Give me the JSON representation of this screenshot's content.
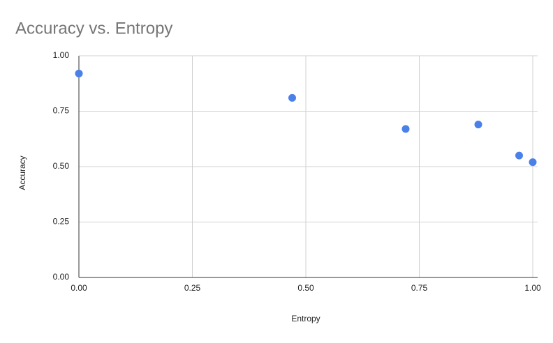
{
  "chart_data": {
    "type": "scatter",
    "title": "Accuracy vs. Entropy",
    "x_label": "Entropy",
    "y_label": "Accuracy",
    "series": [
      {
        "name": "Accuracy",
        "color": "#4a80e8",
        "x": [
          0.0,
          0.47,
          0.72,
          0.88,
          0.97,
          1.0
        ],
        "values": [
          0.92,
          0.81,
          0.67,
          0.69,
          0.55,
          0.52
        ]
      }
    ],
    "xlim": [
      0,
      1
    ],
    "ylim": [
      0,
      1
    ],
    "xticks": [
      {
        "value": 0,
        "label": "0.00"
      },
      {
        "value": 0.25,
        "label": "0.25"
      },
      {
        "value": 0.5,
        "label": "0.50"
      },
      {
        "value": 0.75,
        "label": "0.75"
      },
      {
        "value": 1,
        "label": "1.00"
      }
    ],
    "yticks": [
      {
        "value": 0,
        "label": "0.00"
      },
      {
        "value": 0.25,
        "label": "0.25"
      },
      {
        "value": 0.5,
        "label": "0.50"
      },
      {
        "value": 0.75,
        "label": "0.75"
      },
      {
        "value": 1,
        "label": "1.00"
      }
    ],
    "grid": true
  }
}
